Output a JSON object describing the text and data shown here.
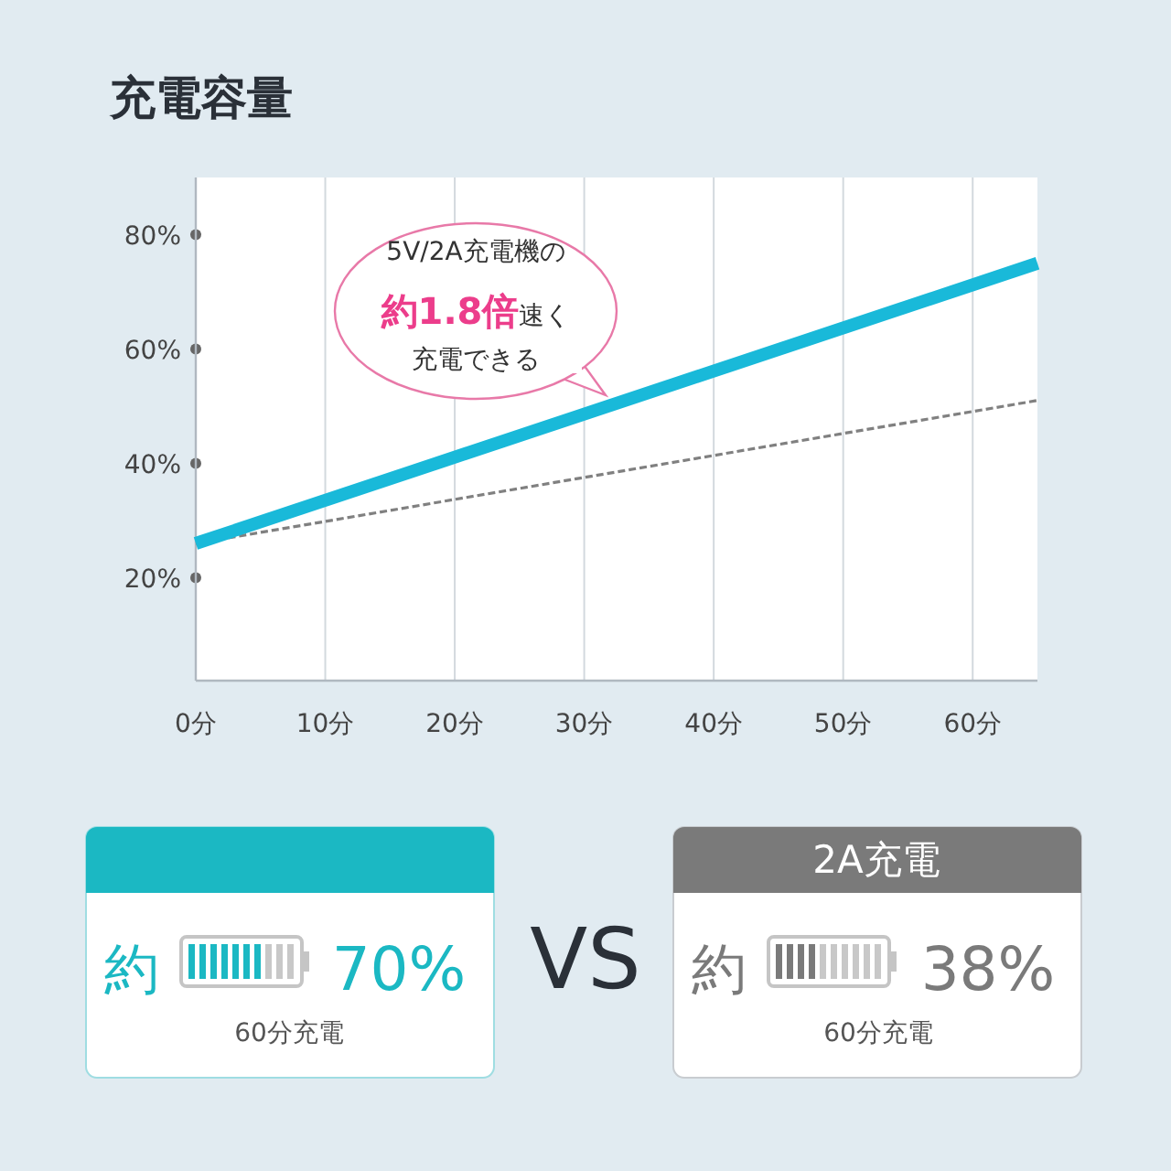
{
  "chart_data": {
    "type": "line",
    "title": "充電容量",
    "x": [
      0,
      65
    ],
    "series": [
      {
        "color": "#19b9d9",
        "values": [
          26,
          75
        ],
        "line_style": "solid"
      },
      {
        "color": "#808080",
        "values": [
          26,
          51
        ],
        "line_style": "dashed"
      }
    ],
    "xlim": [
      0,
      65
    ],
    "xticks": [
      {
        "value": 0,
        "label": "0分"
      },
      {
        "value": 10,
        "label": "10分"
      },
      {
        "value": 20,
        "label": "20分"
      },
      {
        "value": 30,
        "label": "30分"
      },
      {
        "value": 40,
        "label": "40分"
      },
      {
        "value": 50,
        "label": "50分"
      },
      {
        "value": 60,
        "label": "60分"
      }
    ],
    "ylim": [
      2,
      90
    ],
    "yticks": [
      {
        "value": 20,
        "label": "20%"
      },
      {
        "value": 40,
        "label": "40%"
      },
      {
        "value": 60,
        "label": "60%"
      },
      {
        "value": 80,
        "label": "80%"
      }
    ],
    "grid": "x",
    "marker": "none",
    "annotations": [
      "5V/2A充電機の",
      "**約1.8倍**速く",
      "充電できる",
      "2A充電",
      "約",
      "70%",
      "60分充電",
      "VS",
      "約",
      "38%",
      "60分充電"
    ]
  }
}
